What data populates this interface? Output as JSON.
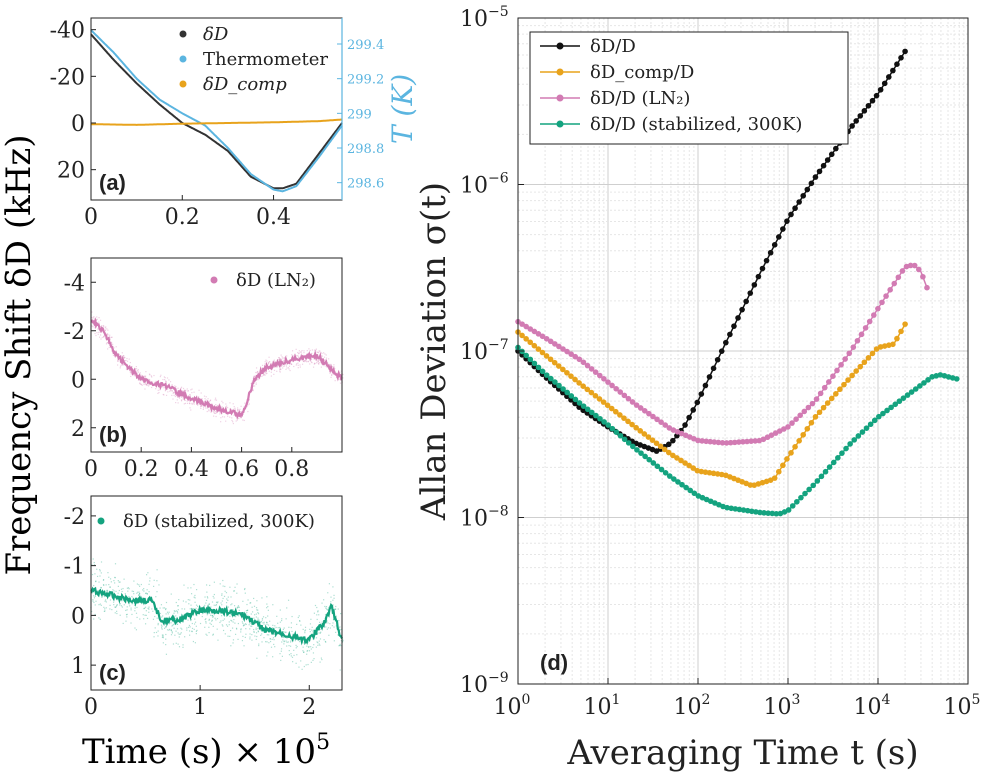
{
  "figure": {
    "shared_ylabel": "Frequency Shift δD (kHz)",
    "shared_xlabel_a": "Time (s) × 10",
    "shared_xlabel_exp": "5"
  },
  "chart_data": [
    {
      "id": "a",
      "type": "line",
      "panel_label": "(a)",
      "xlim": [
        0,
        0.55
      ],
      "ylim": [
        33,
        -45
      ],
      "y2lim": [
        298.5,
        299.55
      ],
      "x_ticks": [
        "0",
        "0.2",
        "0.4"
      ],
      "x_tick_values": [
        0,
        0.2,
        0.4
      ],
      "y_ticks": [
        "-40",
        "-20",
        "0",
        "20"
      ],
      "y_tick_values": [
        -40,
        -20,
        0,
        20
      ],
      "y2_ticks": [
        "299.4",
        "299.2",
        "299",
        "298.8",
        "298.6"
      ],
      "y2_tick_values": [
        299.4,
        299.2,
        299.0,
        298.8,
        298.6
      ],
      "y2label": "T (K)",
      "legend": [
        "δD",
        "Thermometer",
        "δD_comp"
      ],
      "series": [
        {
          "name": "δD",
          "color": "#333333",
          "x": [
            0,
            0.05,
            0.1,
            0.15,
            0.2,
            0.25,
            0.3,
            0.35,
            0.4,
            0.42,
            0.45,
            0.5,
            0.55
          ],
          "values": [
            -38,
            -27,
            -17,
            -8,
            0,
            5,
            12,
            23,
            28,
            28,
            26,
            13,
            0
          ]
        },
        {
          "name": "Thermometer",
          "color": "#5bb5e0",
          "x": [
            0,
            0.05,
            0.1,
            0.15,
            0.2,
            0.25,
            0.3,
            0.35,
            0.4,
            0.42,
            0.45,
            0.5,
            0.55
          ],
          "values": [
            299.48,
            299.35,
            299.2,
            299.08,
            299.0,
            298.93,
            298.8,
            298.65,
            298.56,
            298.55,
            298.58,
            298.75,
            298.93
          ]
        },
        {
          "name": "δD_comp",
          "color": "#e8a31c",
          "x": [
            0,
            0.1,
            0.2,
            0.3,
            0.4,
            0.5,
            0.55
          ],
          "values": [
            0.5,
            0.8,
            0.3,
            0.0,
            -0.3,
            -0.8,
            -1.5
          ]
        }
      ]
    },
    {
      "id": "b",
      "type": "line",
      "panel_label": "(b)",
      "xlim": [
        0,
        1.0
      ],
      "ylim": [
        3,
        -5
      ],
      "x_ticks": [
        "0",
        "0.2",
        "0.4",
        "0.6",
        "0.8"
      ],
      "x_tick_values": [
        0,
        0.2,
        0.4,
        0.6,
        0.8
      ],
      "y_ticks": [
        "-4",
        "-2",
        "0",
        "2"
      ],
      "y_tick_values": [
        -4,
        -2,
        0,
        2
      ],
      "legend": [
        "δD (LN₂)"
      ],
      "series": [
        {
          "name": "δD (LN₂)",
          "color": "#d27bb3",
          "x": [
            0,
            0.05,
            0.1,
            0.15,
            0.2,
            0.3,
            0.4,
            0.5,
            0.6,
            0.62,
            0.65,
            0.7,
            0.8,
            0.9,
            1.0
          ],
          "values": [
            -2.5,
            -2.0,
            -1.0,
            -0.5,
            0.0,
            0.3,
            0.8,
            1.2,
            1.5,
            1.0,
            0.0,
            -0.5,
            -0.8,
            -1.0,
            0.0
          ]
        }
      ]
    },
    {
      "id": "c",
      "type": "line",
      "panel_label": "(c)",
      "xlim": [
        0,
        2.3
      ],
      "ylim": [
        1.5,
        -2.4
      ],
      "x_ticks": [
        "0",
        "1",
        "2"
      ],
      "x_tick_values": [
        0,
        1,
        2
      ],
      "y_ticks": [
        "-2",
        "-1",
        "0",
        "1"
      ],
      "y_tick_values": [
        -2,
        -1,
        0,
        1
      ],
      "legend": [
        "δD (stabilized, 300K)"
      ],
      "series": [
        {
          "name": "δD (stabilized, 300K)",
          "color": "#14a37f",
          "x": [
            0,
            0.2,
            0.4,
            0.55,
            0.65,
            0.8,
            1.0,
            1.2,
            1.4,
            1.6,
            1.8,
            2.0,
            2.15,
            2.2,
            2.3
          ],
          "values": [
            -0.5,
            -0.4,
            -0.3,
            -0.3,
            0.1,
            0.1,
            -0.1,
            -0.1,
            0.0,
            0.3,
            0.4,
            0.5,
            0.1,
            -0.2,
            0.5
          ]
        }
      ]
    },
    {
      "id": "d",
      "type": "line",
      "scale": "loglog",
      "panel_label": "(d)",
      "xlabel": "Averaging Time t (s)",
      "ylabel": "Allan Deviation σ(t)",
      "xlim": [
        1,
        100000
      ],
      "ylim": [
        1e-09,
        1e-05
      ],
      "x_ticks": [
        "10",
        "10",
        "10",
        "10",
        "10",
        "10"
      ],
      "x_tick_exps": [
        "0",
        "1",
        "2",
        "3",
        "4",
        "5"
      ],
      "x_tick_values": [
        1,
        10,
        100,
        1000,
        10000,
        100000
      ],
      "y_ticks": [
        "10",
        "10",
        "10",
        "10",
        "10"
      ],
      "y_tick_exps": [
        "−9",
        "−8",
        "−7",
        "−6",
        "−5"
      ],
      "y_tick_values": [
        1e-09,
        1e-08,
        1e-07,
        1e-06,
        1e-05
      ],
      "grid": true,
      "legend_position": "top-left",
      "legend": [
        "δD/D",
        "δD_comp/D",
        "δD/D (LN₂)",
        "δD/D (stabilized, 300K)"
      ],
      "series": [
        {
          "name": "δD/D",
          "color": "#111111",
          "x": [
            1,
            2,
            5,
            10,
            20,
            35,
            50,
            70,
            100,
            200,
            500,
            1000,
            2000,
            5000,
            10000,
            20000
          ],
          "values": [
            1e-07,
            7e-08,
            4.5e-08,
            3.5e-08,
            2.8e-08,
            2.5e-08,
            2.8e-08,
            3.5e-08,
            5e-08,
            1.1e-07,
            3e-07,
            6.2e-07,
            1.1e-06,
            2.2e-06,
            3.5e-06,
            6.3e-06
          ]
        },
        {
          "name": "δD_comp/D",
          "color": "#e8a31c",
          "x": [
            1,
            2,
            5,
            10,
            20,
            50,
            100,
            200,
            400,
            700,
            1000,
            2000,
            5000,
            10000,
            15000,
            20000
          ],
          "values": [
            1.3e-07,
            9.5e-08,
            6.3e-08,
            4.7e-08,
            3.5e-08,
            2.4e-08,
            1.9e-08,
            1.8e-08,
            1.55e-08,
            1.7e-08,
            2.3e-08,
            4e-08,
            7e-08,
            1.05e-07,
            1.1e-07,
            1.45e-07
          ]
        },
        {
          "name": "δD/D (LN₂)",
          "color": "#d27bb3",
          "x": [
            1,
            2,
            5,
            10,
            20,
            50,
            100,
            200,
            500,
            1000,
            2000,
            5000,
            10000,
            20000,
            25000,
            30000,
            35000
          ],
          "values": [
            1.5e-07,
            1.2e-07,
            8.8e-08,
            6.5e-08,
            4.8e-08,
            3.4e-08,
            2.9e-08,
            2.8e-08,
            2.9e-08,
            3.5e-08,
            5e-08,
            1e-07,
            1.8e-07,
            3.2e-07,
            3.3e-07,
            3e-07,
            2.4e-07
          ]
        },
        {
          "name": "δD/D (stabilized, 300K)",
          "color": "#14a37f",
          "x": [
            1,
            2,
            5,
            10,
            20,
            50,
            100,
            200,
            500,
            800,
            1000,
            2000,
            5000,
            10000,
            20000,
            40000,
            50000,
            60000,
            75000
          ],
          "values": [
            1.05e-07,
            7.3e-08,
            4.8e-08,
            3.6e-08,
            2.6e-08,
            1.75e-08,
            1.35e-08,
            1.15e-08,
            1.07e-08,
            1.05e-08,
            1.1e-08,
            1.6e-08,
            2.8e-08,
            4e-08,
            5.3e-08,
            7e-08,
            7.2e-08,
            7e-08,
            6.8e-08
          ]
        }
      ]
    }
  ]
}
